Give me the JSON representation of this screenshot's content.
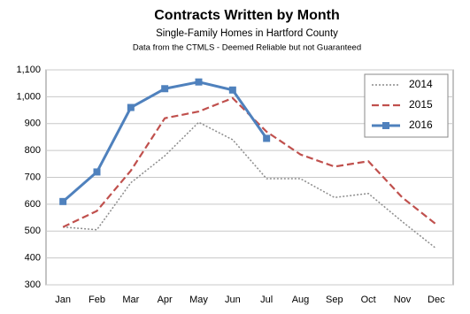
{
  "chart_data": {
    "type": "line",
    "title": "Contracts Written by Month",
    "subtitle": "Single-Family Homes in Hartford County",
    "note": "Data from the CTMLS - Deemed Reliable but not Guaranteed",
    "categories": [
      "Jan",
      "Feb",
      "Mar",
      "Apr",
      "May",
      "Jun",
      "Jul",
      "Aug",
      "Sep",
      "Oct",
      "Nov",
      "Dec"
    ],
    "series": [
      {
        "name": "2014",
        "color": "#8c8c8c",
        "line_style": "dotted",
        "markers": false,
        "values": [
          515,
          505,
          680,
          780,
          905,
          840,
          695,
          695,
          625,
          640,
          535,
          435
        ]
      },
      {
        "name": "2015",
        "color": "#c0504d",
        "line_style": "dashed",
        "markers": false,
        "values": [
          515,
          575,
          725,
          920,
          945,
          995,
          870,
          785,
          740,
          760,
          625,
          525
        ]
      },
      {
        "name": "2016",
        "color": "#4f81bd",
        "line_style": "solid",
        "markers": true,
        "values": [
          610,
          720,
          960,
          1030,
          1055,
          1025,
          845,
          null,
          null,
          null,
          null,
          null
        ]
      }
    ],
    "ylim": [
      300,
      1100
    ],
    "yticks": [
      300,
      400,
      500,
      600,
      700,
      800,
      900,
      {
        "value": 1000,
        "label": "1,000"
      },
      {
        "value": 1100,
        "label": "1,100"
      }
    ],
    "grid": true,
    "legend": "top-right"
  }
}
